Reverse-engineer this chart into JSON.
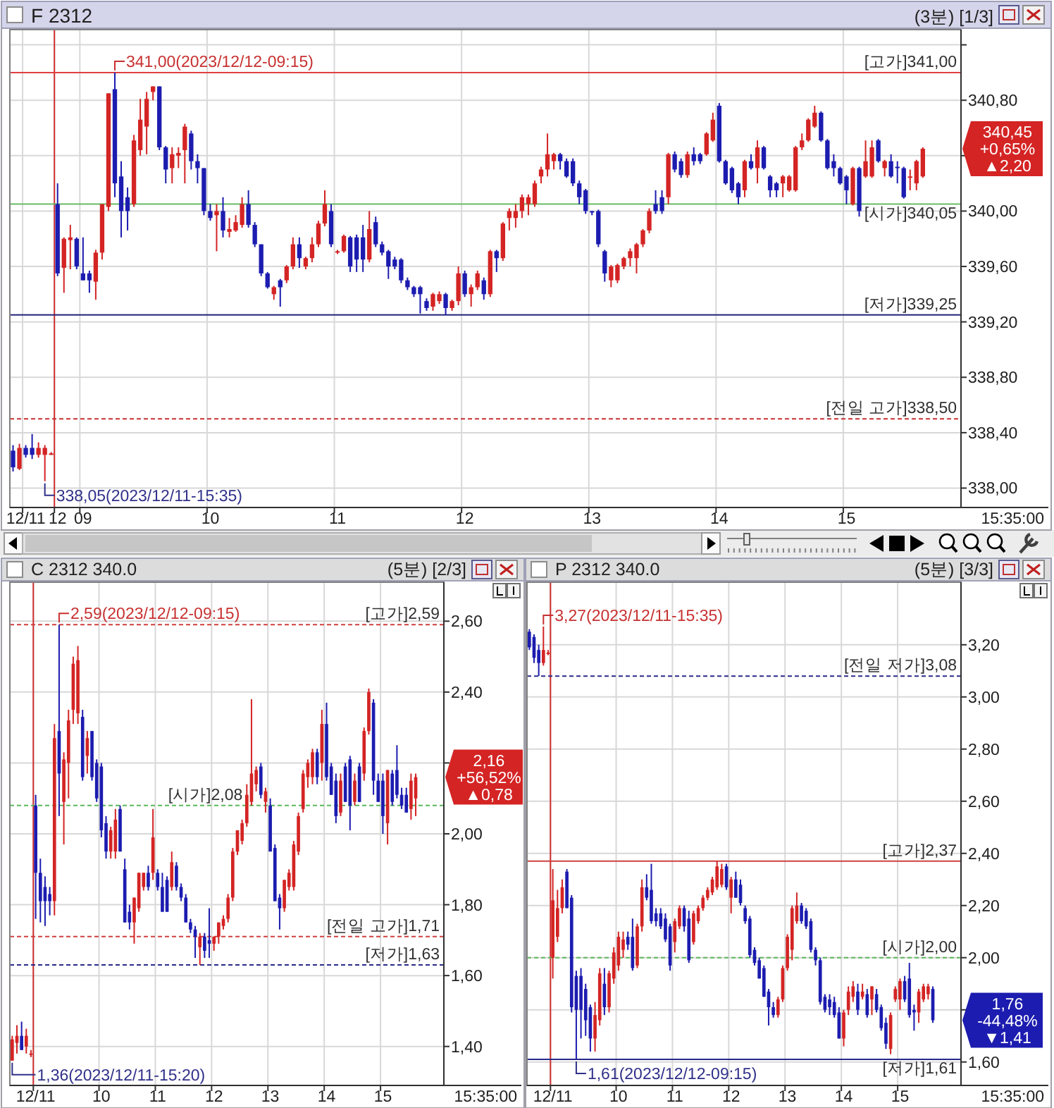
{
  "chart_data": [
    {
      "type": "candlestick",
      "title": "F 2312",
      "subtitle": "(3분) [1/3]",
      "xlabel": "15:35:00",
      "categories": [
        null,
        null,
        "12/11",
        null,
        null,
        null,
        null,
        "12",
        null,
        null,
        null,
        "09",
        null,
        null,
        null,
        null,
        null,
        null,
        null,
        null,
        null,
        null,
        null,
        null,
        null,
        null,
        null,
        null,
        null,
        null,
        null,
        "10",
        null,
        null,
        null,
        null,
        null,
        null,
        null,
        null,
        null,
        null,
        null,
        null,
        null,
        null,
        null,
        null,
        null,
        null,
        null,
        "11",
        null,
        null,
        null,
        null,
        null,
        null,
        null,
        null,
        null,
        null,
        null,
        null,
        null,
        null,
        null,
        null,
        null,
        null,
        null,
        "12",
        null,
        null,
        null,
        null,
        null,
        null,
        null,
        null,
        null,
        null,
        null,
        null,
        null,
        null,
        null,
        null,
        null,
        null,
        null,
        "13",
        null,
        null,
        null,
        null,
        null,
        null,
        null,
        null,
        null,
        null,
        null,
        null,
        null,
        null,
        null,
        null,
        null,
        null,
        null,
        "14",
        null,
        null,
        null,
        null,
        null,
        null,
        null,
        null,
        null,
        null,
        null,
        null,
        null,
        null,
        null,
        null,
        null,
        null,
        null,
        "15",
        null,
        null,
        null,
        null,
        null,
        null,
        null,
        null,
        null,
        null,
        null,
        null
      ],
      "ohlc": [
        [
          338.27,
          338.31,
          338.12,
          338.15
        ],
        [
          338.14,
          338.32,
          338.13,
          338.29
        ],
        [
          338.29,
          338.31,
          338.22,
          338.24
        ],
        [
          338.29,
          338.39,
          338.21,
          338.24
        ],
        [
          338.24,
          338.33,
          338.22,
          338.29
        ],
        [
          338.24,
          338.31,
          338.05,
          338.29
        ],
        [
          338.25,
          338.26,
          338.24,
          338.25
        ],
        [
          340.05,
          340.2,
          339.53,
          339.55
        ],
        [
          339.59,
          339.81,
          339.41,
          339.8
        ],
        [
          339.79,
          339.9,
          339.58,
          339.81
        ],
        [
          339.8,
          339.81,
          339.58,
          339.6
        ],
        [
          339.55,
          339.81,
          339.5,
          339.5
        ],
        [
          339.55,
          339.57,
          339.41,
          339.5
        ],
        [
          339.49,
          339.72,
          339.36,
          339.7
        ],
        [
          339.7,
          340.05,
          339.65,
          340.05
        ],
        [
          340.03,
          340.85,
          340.0,
          340.85
        ],
        [
          340.88,
          341.0,
          340.1,
          340.2
        ],
        [
          340.25,
          340.36,
          339.81,
          340.0
        ],
        [
          340.1,
          340.17,
          339.86,
          340.0
        ],
        [
          340.05,
          340.55,
          340.03,
          340.51
        ],
        [
          340.44,
          340.81,
          340.4,
          340.66
        ],
        [
          340.61,
          340.86,
          340.41,
          340.81
        ],
        [
          340.86,
          340.9,
          340.8,
          340.9
        ],
        [
          340.9,
          340.9,
          340.44,
          340.46
        ],
        [
          340.46,
          340.47,
          340.2,
          340.3
        ],
        [
          340.31,
          340.46,
          340.2,
          340.41
        ],
        [
          340.4,
          340.46,
          340.31,
          340.42
        ],
        [
          340.44,
          340.63,
          340.2,
          340.61
        ],
        [
          340.56,
          340.58,
          340.3,
          340.36
        ],
        [
          340.36,
          340.41,
          340.2,
          340.31
        ],
        [
          340.31,
          340.31,
          339.97,
          340.0
        ],
        [
          340.0,
          340.05,
          339.93,
          339.95
        ],
        [
          339.97,
          340.05,
          339.71,
          340.0
        ],
        [
          340.0,
          340.1,
          339.81,
          339.86
        ],
        [
          339.85,
          339.95,
          339.81,
          339.87
        ],
        [
          339.86,
          339.97,
          339.85,
          339.92
        ],
        [
          339.9,
          340.1,
          339.88,
          340.05
        ],
        [
          340.05,
          340.15,
          339.88,
          339.9
        ],
        [
          339.9,
          339.92,
          339.74,
          339.76
        ],
        [
          339.76,
          339.76,
          339.53,
          339.55
        ],
        [
          339.55,
          339.56,
          339.44,
          339.45
        ],
        [
          339.4,
          339.46,
          339.36,
          339.45
        ],
        [
          339.5,
          339.51,
          339.31,
          339.45
        ],
        [
          339.5,
          339.61,
          339.48,
          339.6
        ],
        [
          339.6,
          339.81,
          339.58,
          339.76
        ],
        [
          339.76,
          339.81,
          339.59,
          339.66
        ],
        [
          339.6,
          339.67,
          339.58,
          339.66
        ],
        [
          339.66,
          339.81,
          339.63,
          339.76
        ],
        [
          339.76,
          339.93,
          339.74,
          339.91
        ],
        [
          339.91,
          340.15,
          339.89,
          340.05
        ],
        [
          340.0,
          340.05,
          339.74,
          339.76
        ],
        [
          339.7,
          339.72,
          339.69,
          339.71
        ],
        [
          339.71,
          339.83,
          339.7,
          339.82
        ],
        [
          339.81,
          339.82,
          339.56,
          339.6
        ],
        [
          339.81,
          339.83,
          339.56,
          339.65
        ],
        [
          339.81,
          339.9,
          339.56,
          339.65
        ],
        [
          339.65,
          340.0,
          339.63,
          339.87
        ],
        [
          339.92,
          339.96,
          339.74,
          339.76
        ],
        [
          339.76,
          339.78,
          339.68,
          339.7
        ],
        [
          339.71,
          339.72,
          339.51,
          339.6
        ],
        [
          339.65,
          339.67,
          339.58,
          339.6
        ],
        [
          339.65,
          339.66,
          339.48,
          339.5
        ],
        [
          339.5,
          339.52,
          339.43,
          339.45
        ],
        [
          339.45,
          339.46,
          339.38,
          339.4
        ],
        [
          339.45,
          339.46,
          339.26,
          339.4
        ],
        [
          339.35,
          339.37,
          339.28,
          339.3
        ],
        [
          339.31,
          339.41,
          339.28,
          339.4
        ],
        [
          339.35,
          339.42,
          339.33,
          339.4
        ],
        [
          339.4,
          339.41,
          339.25,
          339.3
        ],
        [
          339.3,
          339.36,
          339.28,
          339.35
        ],
        [
          339.35,
          339.6,
          339.32,
          339.55
        ],
        [
          339.55,
          339.57,
          339.38,
          339.4
        ],
        [
          339.4,
          339.47,
          339.31,
          339.45
        ],
        [
          339.45,
          339.57,
          339.43,
          339.55
        ],
        [
          339.5,
          339.52,
          339.36,
          339.4
        ],
        [
          339.4,
          339.72,
          339.38,
          339.71
        ],
        [
          339.71,
          339.72,
          339.56,
          339.66
        ],
        [
          339.66,
          339.92,
          339.64,
          339.91
        ],
        [
          339.95,
          340.02,
          339.86,
          340.0
        ],
        [
          339.95,
          340.05,
          339.88,
          340.0
        ],
        [
          340.0,
          340.12,
          339.95,
          340.1
        ],
        [
          340.05,
          340.12,
          339.97,
          340.1
        ],
        [
          340.05,
          340.22,
          340.03,
          340.2
        ],
        [
          340.25,
          340.32,
          340.2,
          340.3
        ],
        [
          340.3,
          340.56,
          340.25,
          340.41
        ],
        [
          340.36,
          340.42,
          340.3,
          340.41
        ],
        [
          340.41,
          340.42,
          340.3,
          340.36
        ],
        [
          340.36,
          340.38,
          340.24,
          340.25
        ],
        [
          340.36,
          340.38,
          340.18,
          340.2
        ],
        [
          340.2,
          340.22,
          340.05,
          340.1
        ],
        [
          340.15,
          340.16,
          339.98,
          340.0
        ],
        [
          340.0,
          340.0,
          339.97,
          339.99
        ],
        [
          340.0,
          340.01,
          339.74,
          339.76
        ],
        [
          339.71,
          339.72,
          339.49,
          339.55
        ],
        [
          339.5,
          339.61,
          339.45,
          339.6
        ],
        [
          339.5,
          339.62,
          339.48,
          339.61
        ],
        [
          339.6,
          339.67,
          339.58,
          339.66
        ],
        [
          339.66,
          339.73,
          339.6,
          339.71
        ],
        [
          339.66,
          339.77,
          339.55,
          339.76
        ],
        [
          339.76,
          339.87,
          339.74,
          339.86
        ],
        [
          339.86,
          340.02,
          339.84,
          340.0
        ],
        [
          340.05,
          340.15,
          339.98,
          340.0
        ],
        [
          340.1,
          340.15,
          339.98,
          340.0
        ],
        [
          340.1,
          340.42,
          340.05,
          340.41
        ],
        [
          340.41,
          340.43,
          340.28,
          340.3
        ],
        [
          340.36,
          340.38,
          340.24,
          340.26
        ],
        [
          340.26,
          340.43,
          340.24,
          340.41
        ],
        [
          340.41,
          340.46,
          340.33,
          340.36
        ],
        [
          340.41,
          340.42,
          340.34,
          340.36
        ],
        [
          340.41,
          340.57,
          340.4,
          340.56
        ],
        [
          340.51,
          340.71,
          340.5,
          340.66
        ],
        [
          340.76,
          340.78,
          340.35,
          340.36
        ],
        [
          340.36,
          340.37,
          340.19,
          340.2
        ],
        [
          340.31,
          340.32,
          340.13,
          340.15
        ],
        [
          340.2,
          340.21,
          340.05,
          340.1
        ],
        [
          340.15,
          340.37,
          340.1,
          340.36
        ],
        [
          340.36,
          340.41,
          340.3,
          340.31
        ],
        [
          340.31,
          340.51,
          340.2,
          340.46
        ],
        [
          340.46,
          340.47,
          340.3,
          340.31
        ],
        [
          340.25,
          340.26,
          340.1,
          340.15
        ],
        [
          340.2,
          340.21,
          340.1,
          340.15
        ],
        [
          340.2,
          340.26,
          340.1,
          340.25
        ],
        [
          340.15,
          340.26,
          340.14,
          340.25
        ],
        [
          340.15,
          340.47,
          340.14,
          340.46
        ],
        [
          340.46,
          340.56,
          340.44,
          340.51
        ],
        [
          340.51,
          340.67,
          340.5,
          340.66
        ],
        [
          340.61,
          340.76,
          340.6,
          340.71
        ],
        [
          340.71,
          340.72,
          340.5,
          340.51
        ],
        [
          340.51,
          340.52,
          340.3,
          340.31
        ],
        [
          340.36,
          340.41,
          340.25,
          340.31
        ],
        [
          340.31,
          340.32,
          340.19,
          340.2
        ],
        [
          340.25,
          340.26,
          340.05,
          340.15
        ],
        [
          340.05,
          340.32,
          340.04,
          340.31
        ],
        [
          340.31,
          340.32,
          339.96,
          340.0
        ],
        [
          340.25,
          340.51,
          340.24,
          340.36
        ],
        [
          340.25,
          340.51,
          340.24,
          340.46
        ],
        [
          340.51,
          340.52,
          340.35,
          340.36
        ],
        [
          340.31,
          340.37,
          340.25,
          340.36
        ],
        [
          340.36,
          340.41,
          340.24,
          340.25
        ],
        [
          340.32,
          340.36,
          340.2,
          340.31
        ],
        [
          340.31,
          340.32,
          340.09,
          340.1
        ],
        [
          340.24,
          340.3,
          340.15,
          340.25
        ],
        [
          340.2,
          340.37,
          340.15,
          340.36
        ],
        [
          340.25,
          340.46,
          340.24,
          340.45
        ]
      ],
      "ylim": [
        337.86,
        341.31
      ],
      "yticks": [
        {
          "value": 338,
          "label": "338,00"
        },
        {
          "value": 338.4,
          "label": "338,40"
        },
        {
          "value": 338.8,
          "label": "338,80"
        },
        {
          "value": 339.2,
          "label": "339,20"
        },
        {
          "value": 339.6,
          "label": "339,60"
        },
        {
          "value": 340,
          "label": "340,00"
        },
        {
          "value": 340.4,
          "label": null
        },
        {
          "value": 340.8,
          "label": "340,80"
        },
        {
          "value": 341.2,
          "label": null
        }
      ],
      "grid": true,
      "ref_lines": [
        {
          "axis": "x",
          "value": "12",
          "color": "#d03030",
          "line_style": "solid"
        },
        {
          "axis": "y",
          "value": 341.0,
          "label": "[고가]341,00",
          "color": "#e04040",
          "line_style": "solid"
        },
        {
          "axis": "y",
          "value": 340.05,
          "label": "[시가]340,05",
          "color": "#66bb66",
          "line_style": "solid"
        },
        {
          "axis": "y",
          "value": 339.25,
          "label": "[저가]339,25",
          "color": "#24247a",
          "line_style": "solid"
        },
        {
          "axis": "y",
          "value": 338.5,
          "label": "[전일 고가]338,50",
          "color": "#c83232",
          "line_style": "dashed"
        }
      ],
      "annotations": [
        {
          "text": "341,00(2023/12/12-09:15)",
          "y": 341.0
        },
        "338,05(2023/12/11-15:35)",
        "340,45\n+0,65%\n▲2,20"
      ]
    },
    {
      "type": "candlestick",
      "title": "C 2312 340.0",
      "subtitle": "(5분) [2/3]",
      "xlabel": "15:35:00",
      "categories": [
        null,
        null,
        null,
        null,
        null,
        "12/11",
        null,
        null,
        null,
        null,
        null,
        null,
        null,
        null,
        null,
        null,
        null,
        null,
        null,
        "10",
        null,
        null,
        null,
        null,
        null,
        null,
        null,
        null,
        null,
        null,
        null,
        "11",
        null,
        null,
        null,
        null,
        null,
        null,
        null,
        null,
        null,
        null,
        null,
        "12",
        null,
        null,
        null,
        null,
        null,
        null,
        null,
        null,
        null,
        null,
        null,
        "13",
        null,
        null,
        null,
        null,
        null,
        null,
        null,
        null,
        null,
        null,
        null,
        "14",
        null,
        null,
        null,
        null,
        null,
        null,
        null,
        null,
        null,
        null,
        null,
        "15",
        null,
        null,
        null,
        null,
        null,
        null,
        null
      ],
      "ohlc": [
        [
          1.36,
          1.43,
          1.36,
          1.42
        ],
        [
          1.41,
          1.46,
          1.38,
          1.43
        ],
        [
          1.43,
          1.47,
          1.39,
          1.39
        ],
        [
          1.4,
          1.45,
          1.38,
          1.43
        ],
        [
          1.38,
          1.39,
          1.37,
          1.38
        ],
        [
          2.08,
          2.11,
          1.76,
          1.89
        ],
        [
          1.89,
          1.93,
          1.75,
          1.81
        ],
        [
          1.85,
          1.88,
          1.74,
          1.81
        ],
        [
          1.83,
          1.85,
          1.77,
          1.81
        ],
        [
          1.81,
          2.31,
          1.77,
          2.27
        ],
        [
          2.29,
          2.59,
          2.05,
          2.17
        ],
        [
          2.09,
          2.23,
          1.97,
          2.21
        ],
        [
          2.2,
          2.35,
          2.1,
          2.32
        ],
        [
          2.35,
          2.5,
          2.31,
          2.48
        ],
        [
          2.34,
          2.53,
          2.31,
          2.49
        ],
        [
          2.33,
          2.35,
          2.15,
          2.16
        ],
        [
          2.22,
          2.29,
          2.17,
          2.27
        ],
        [
          2.29,
          2.29,
          2.15,
          2.16
        ],
        [
          2.2,
          2.21,
          2.09,
          2.1
        ],
        [
          2.19,
          2.2,
          1.99,
          2.01
        ],
        [
          2.03,
          2.05,
          1.93,
          1.95
        ],
        [
          1.95,
          2.02,
          1.93,
          2.01
        ],
        [
          1.95,
          2.07,
          1.93,
          2.04
        ],
        [
          2.07,
          2.08,
          1.95,
          1.95
        ],
        [
          1.9,
          1.93,
          1.75,
          1.75
        ],
        [
          1.78,
          1.8,
          1.73,
          1.75
        ],
        [
          1.75,
          1.82,
          1.69,
          1.82
        ],
        [
          1.79,
          1.89,
          1.78,
          1.89
        ],
        [
          1.85,
          1.89,
          1.84,
          1.89
        ],
        [
          1.89,
          1.91,
          1.84,
          1.85
        ],
        [
          1.89,
          2.07,
          1.87,
          1.99
        ],
        [
          1.89,
          1.9,
          1.84,
          1.85
        ],
        [
          1.85,
          1.89,
          1.78,
          1.78
        ],
        [
          1.87,
          1.88,
          1.78,
          1.78
        ],
        [
          1.85,
          1.95,
          1.84,
          1.92
        ],
        [
          1.91,
          1.92,
          1.84,
          1.85
        ],
        [
          1.85,
          1.86,
          1.81,
          1.82
        ],
        [
          1.82,
          1.83,
          1.75,
          1.75
        ],
        [
          1.75,
          1.76,
          1.72,
          1.73
        ],
        [
          1.73,
          1.74,
          1.65,
          1.71
        ],
        [
          1.68,
          1.72,
          1.63,
          1.71
        ],
        [
          1.71,
          1.72,
          1.65,
          1.67
        ],
        [
          1.7,
          1.79,
          1.65,
          1.69
        ],
        [
          1.69,
          1.71,
          1.67,
          1.71
        ],
        [
          1.71,
          1.75,
          1.69,
          1.75
        ],
        [
          1.74,
          1.77,
          1.73,
          1.76
        ],
        [
          1.76,
          1.83,
          1.75,
          1.82
        ],
        [
          1.82,
          1.96,
          1.81,
          1.95
        ],
        [
          1.95,
          2.01,
          1.94,
          2.01
        ],
        [
          1.98,
          2.04,
          1.97,
          2.03
        ],
        [
          2.03,
          2.14,
          2.02,
          2.11
        ],
        [
          2.09,
          2.38,
          2.08,
          2.17
        ],
        [
          2.14,
          2.19,
          2.12,
          2.18
        ],
        [
          2.19,
          2.2,
          2.1,
          2.11
        ],
        [
          2.09,
          2.13,
          2.06,
          2.12
        ],
        [
          2.08,
          2.1,
          1.95,
          1.95
        ],
        [
          1.96,
          1.97,
          1.81,
          1.81
        ],
        [
          1.82,
          1.83,
          1.73,
          1.79
        ],
        [
          1.79,
          1.87,
          1.78,
          1.87
        ],
        [
          1.85,
          1.9,
          1.84,
          1.89
        ],
        [
          1.85,
          1.98,
          1.84,
          1.97
        ],
        [
          1.95,
          2.06,
          1.94,
          2.05
        ],
        [
          2.07,
          2.18,
          2.06,
          2.17
        ],
        [
          2.16,
          2.21,
          2.13,
          2.2
        ],
        [
          2.16,
          2.24,
          2.14,
          2.23
        ],
        [
          2.23,
          2.24,
          2.14,
          2.16
        ],
        [
          2.2,
          2.35,
          2.15,
          2.31
        ],
        [
          2.31,
          2.37,
          2.15,
          2.16
        ],
        [
          2.19,
          2.2,
          2.11,
          2.11
        ],
        [
          2.15,
          2.17,
          2.03,
          2.05
        ],
        [
          2.06,
          2.17,
          2.05,
          2.15
        ],
        [
          2.19,
          2.2,
          2.09,
          2.09
        ],
        [
          2.21,
          2.22,
          2.01,
          2.08
        ],
        [
          2.09,
          2.17,
          2.08,
          2.15
        ],
        [
          2.19,
          2.2,
          2.09,
          2.09
        ],
        [
          2.17,
          2.3,
          2.15,
          2.29
        ],
        [
          2.29,
          2.41,
          2.28,
          2.4
        ],
        [
          2.37,
          2.38,
          2.11,
          2.15
        ],
        [
          2.15,
          2.17,
          2.09,
          2.09
        ],
        [
          2.15,
          2.17,
          2.0,
          2.05
        ],
        [
          2.03,
          2.18,
          1.97,
          2.18
        ],
        [
          2.17,
          2.18,
          2.08,
          2.09
        ],
        [
          2.18,
          2.25,
          2.1,
          2.11
        ],
        [
          2.11,
          2.13,
          2.07,
          2.08
        ],
        [
          2.11,
          2.13,
          2.06,
          2.06
        ],
        [
          2.07,
          2.17,
          2.04,
          2.15
        ],
        [
          2.1,
          2.17,
          2.05,
          2.16
        ]
      ],
      "ylim": [
        1.29,
        2.71
      ],
      "yticks": [
        {
          "value": 1.4,
          "label": "1,40"
        },
        {
          "value": 1.6,
          "label": "1,60"
        },
        {
          "value": 1.8,
          "label": "1,80"
        },
        {
          "value": 2.0,
          "label": "2,00"
        },
        {
          "value": 2.2,
          "label": null
        },
        {
          "value": 2.4,
          "label": "2,40"
        },
        {
          "value": 2.6,
          "label": "2,60"
        }
      ],
      "grid": true,
      "ref_lines": [
        {
          "axis": "x",
          "value": "12/11",
          "color": "#d03030",
          "line_style": "solid"
        },
        {
          "axis": "y",
          "value": 2.59,
          "label": "[고가]2,59",
          "color": "#d04040",
          "line_style": "dashed"
        },
        {
          "axis": "y",
          "value": 2.08,
          "label": "[시가]2,08",
          "color": "#5cb85c",
          "line_style": "dashed"
        },
        {
          "axis": "y",
          "value": 1.71,
          "label": "[전일 고가]1,71",
          "color": "#d04040",
          "line_style": "dashed"
        },
        {
          "axis": "y",
          "value": 1.63,
          "label": "[저가]1,63",
          "color": "#2a2a8a",
          "line_style": "dashed"
        }
      ],
      "annotations": [
        {
          "text": "2,59(2023/12/12-09:15)",
          "y": 2.59
        },
        "1,36(2023/12/11-15:20)",
        "2,16\n+56,52%\n▲0,78"
      ]
    },
    {
      "type": "candlestick",
      "title": "P 2312 340.0",
      "subtitle": "(5분) [3/3]",
      "xlabel": "15:35:00",
      "categories": [
        null,
        null,
        null,
        null,
        null,
        "12/11",
        null,
        null,
        null,
        null,
        null,
        null,
        null,
        null,
        null,
        null,
        null,
        null,
        null,
        "10",
        null,
        null,
        null,
        null,
        null,
        null,
        null,
        null,
        null,
        null,
        null,
        "11",
        null,
        null,
        null,
        null,
        null,
        null,
        null,
        null,
        null,
        null,
        null,
        "12",
        null,
        null,
        null,
        null,
        null,
        null,
        null,
        null,
        null,
        null,
        null,
        "13",
        null,
        null,
        null,
        null,
        null,
        null,
        null,
        null,
        null,
        null,
        null,
        "14",
        null,
        null,
        null,
        null,
        null,
        null,
        null,
        null,
        null,
        null,
        null,
        "15",
        null,
        null,
        null,
        null,
        null,
        null,
        null
      ],
      "ohlc": [
        [
          3.25,
          3.26,
          3.18,
          3.19
        ],
        [
          3.23,
          3.24,
          3.13,
          3.15
        ],
        [
          3.18,
          3.2,
          3.08,
          3.13
        ],
        [
          3.13,
          3.27,
          3.12,
          3.18
        ],
        [
          3.17,
          3.18,
          3.16,
          3.17
        ],
        [
          2.0,
          2.34,
          1.92,
          2.22
        ],
        [
          2.08,
          2.26,
          2.06,
          2.19
        ],
        [
          2.19,
          2.3,
          2.17,
          2.27
        ],
        [
          2.33,
          2.34,
          2.19,
          2.19
        ],
        [
          2.23,
          2.24,
          1.79,
          1.81
        ],
        [
          1.93,
          1.95,
          1.61,
          1.8
        ],
        [
          1.93,
          1.96,
          1.69,
          1.8
        ],
        [
          1.88,
          1.9,
          1.7,
          1.76
        ],
        [
          1.81,
          1.82,
          1.64,
          1.69
        ],
        [
          1.69,
          1.83,
          1.64,
          1.78
        ],
        [
          1.76,
          1.96,
          1.74,
          1.94
        ],
        [
          1.9,
          1.96,
          1.78,
          1.81
        ],
        [
          1.81,
          1.95,
          1.79,
          1.94
        ],
        [
          1.92,
          2.04,
          1.9,
          2.02
        ],
        [
          1.97,
          2.1,
          1.95,
          2.08
        ],
        [
          2.03,
          2.1,
          2.0,
          2.07
        ],
        [
          2.08,
          2.1,
          2.03,
          2.05
        ],
        [
          2.08,
          2.15,
          1.95,
          1.96
        ],
        [
          1.97,
          2.13,
          1.96,
          2.12
        ],
        [
          2.12,
          2.3,
          2.1,
          2.27
        ],
        [
          2.27,
          2.32,
          2.22,
          2.23
        ],
        [
          2.26,
          2.36,
          2.13,
          2.14
        ],
        [
          2.17,
          2.19,
          2.12,
          2.14
        ],
        [
          2.17,
          2.19,
          2.11,
          2.12
        ],
        [
          2.15,
          2.17,
          2.06,
          2.07
        ],
        [
          2.12,
          2.13,
          1.95,
          1.97
        ],
        [
          2.06,
          2.15,
          2.02,
          2.14
        ],
        [
          2.12,
          2.2,
          2.11,
          2.19
        ],
        [
          2.19,
          2.2,
          2.1,
          2.12
        ],
        [
          2.15,
          2.18,
          1.98,
          1.99
        ],
        [
          2.06,
          2.18,
          2.05,
          2.17
        ],
        [
          2.14,
          2.2,
          2.13,
          2.19
        ],
        [
          2.19,
          2.24,
          2.18,
          2.23
        ],
        [
          2.23,
          2.27,
          2.22,
          2.26
        ],
        [
          2.25,
          2.31,
          2.24,
          2.3
        ],
        [
          2.27,
          2.37,
          2.26,
          2.35
        ],
        [
          2.28,
          2.36,
          2.27,
          2.34
        ],
        [
          2.35,
          2.36,
          2.26,
          2.27
        ],
        [
          2.23,
          2.31,
          2.17,
          2.3
        ],
        [
          2.3,
          2.33,
          2.23,
          2.23
        ],
        [
          2.28,
          2.3,
          2.2,
          2.21
        ],
        [
          2.19,
          2.2,
          2.13,
          2.14
        ],
        [
          2.15,
          2.16,
          2.0,
          2.01
        ],
        [
          2.03,
          2.04,
          1.97,
          1.98
        ],
        [
          1.99,
          2.0,
          1.92,
          1.92
        ],
        [
          1.96,
          1.97,
          1.85,
          1.85
        ],
        [
          1.87,
          1.88,
          1.74,
          1.81
        ],
        [
          1.81,
          1.83,
          1.77,
          1.78
        ],
        [
          1.78,
          1.85,
          1.77,
          1.84
        ],
        [
          1.84,
          1.97,
          1.83,
          1.96
        ],
        [
          1.96,
          2.09,
          1.95,
          2.08
        ],
        [
          2.03,
          2.2,
          1.99,
          2.19
        ],
        [
          2.14,
          2.25,
          2.13,
          2.2
        ],
        [
          2.2,
          2.21,
          2.13,
          2.14
        ],
        [
          2.18,
          2.19,
          2.11,
          2.12
        ],
        [
          2.14,
          2.15,
          2.02,
          2.03
        ],
        [
          2.03,
          2.04,
          1.97,
          1.99
        ],
        [
          1.99,
          2.0,
          1.82,
          1.83
        ],
        [
          1.85,
          1.86,
          1.79,
          1.8
        ],
        [
          1.84,
          1.86,
          1.78,
          1.81
        ],
        [
          1.83,
          1.85,
          1.77,
          1.78
        ],
        [
          1.79,
          1.81,
          1.69,
          1.69
        ],
        [
          1.69,
          1.8,
          1.66,
          1.79
        ],
        [
          1.8,
          1.89,
          1.78,
          1.87
        ],
        [
          1.85,
          1.91,
          1.83,
          1.89
        ],
        [
          1.87,
          1.9,
          1.78,
          1.8
        ],
        [
          1.85,
          1.9,
          1.84,
          1.87
        ],
        [
          1.86,
          1.88,
          1.77,
          1.78
        ],
        [
          1.84,
          1.89,
          1.78,
          1.89
        ],
        [
          1.86,
          1.88,
          1.79,
          1.8
        ],
        [
          1.81,
          1.82,
          1.72,
          1.73
        ],
        [
          1.75,
          1.77,
          1.65,
          1.67
        ],
        [
          1.65,
          1.79,
          1.63,
          1.78
        ],
        [
          1.84,
          1.89,
          1.83,
          1.88
        ],
        [
          1.84,
          1.92,
          1.8,
          1.91
        ],
        [
          1.91,
          1.93,
          1.83,
          1.84
        ],
        [
          1.92,
          1.98,
          1.77,
          1.78
        ],
        [
          1.8,
          1.82,
          1.72,
          1.79
        ],
        [
          1.79,
          1.88,
          1.75,
          1.87
        ],
        [
          1.84,
          1.9,
          1.83,
          1.89
        ],
        [
          1.86,
          1.9,
          1.84,
          1.89
        ],
        [
          1.88,
          1.89,
          1.75,
          1.76
        ]
      ],
      "ylim": [
        1.51,
        3.44
      ],
      "yticks": [
        {
          "value": 1.6,
          "label": "1,60"
        },
        {
          "value": 1.8,
          "label": null
        },
        {
          "value": 2.0,
          "label": "2,00"
        },
        {
          "value": 2.2,
          "label": "2,20"
        },
        {
          "value": 2.4,
          "label": "2,40"
        },
        {
          "value": 2.6,
          "label": "2,60"
        },
        {
          "value": 2.8,
          "label": "2,80"
        },
        {
          "value": 3.0,
          "label": "3,00"
        },
        {
          "value": 3.2,
          "label": "3,20"
        }
      ],
      "grid": true,
      "ref_lines": [
        {
          "axis": "x",
          "value": "12/11",
          "color": "#d03030",
          "line_style": "solid"
        },
        {
          "axis": "y",
          "value": 3.08,
          "label": "[전일 저가]3,08",
          "color": "#2a2a8a",
          "line_style": "dashed"
        },
        {
          "axis": "y",
          "value": 2.37,
          "label": "[고가]2,37",
          "color": "#d04040",
          "line_style": "solid"
        },
        {
          "axis": "y",
          "value": 2.0,
          "label": "[시가]2,00",
          "color": "#5cb85c",
          "line_style": "dashed"
        },
        {
          "axis": "y",
          "value": 1.61,
          "label": "[저가]1,61",
          "color": "#2a2a8a",
          "line_style": "solid"
        }
      ],
      "annotations": [
        "3,27(2023/12/11-15:35)",
        {
          "text": "1,61(2023/12/12-09:15)",
          "y": 1.61
        },
        "1,76\n-44,48%\n▼1,41"
      ]
    }
  ]
}
